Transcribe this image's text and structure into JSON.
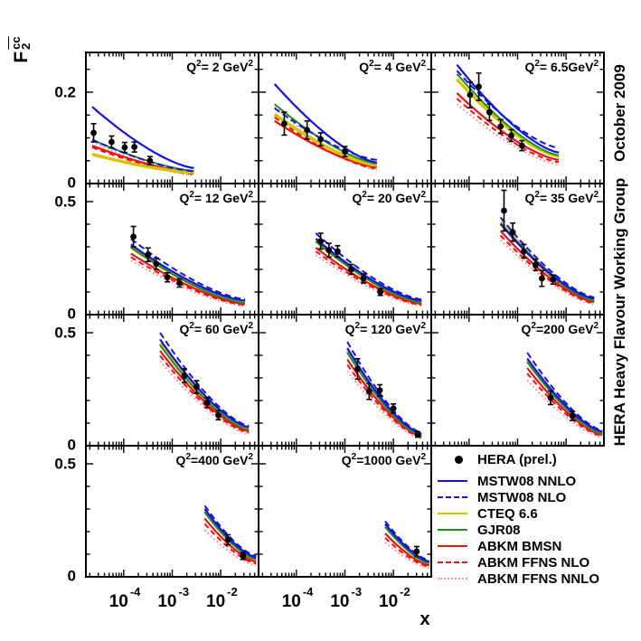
{
  "chart_data": {
    "type": "line",
    "x_scale": "log",
    "xlabel": "x",
    "x_range_log10": [
      -4.78,
      -1.22
    ],
    "x_major_ticks": [
      {
        "log10": -4,
        "base": "10",
        "exponent": "-4"
      },
      {
        "log10": -3,
        "base": "10",
        "exponent": "-3"
      },
      {
        "log10": -2,
        "base": "10",
        "exponent": "-2"
      }
    ],
    "y_axis_title": {
      "base": "F",
      "sup": "cc",
      "sub": "2"
    },
    "annotations": {
      "right_top": "October 2009",
      "right_side": "HERA Heavy Flavour Working Group"
    },
    "rows": [
      {
        "y_max": 0.287,
        "major": [
          {
            "value": 0.2,
            "label": "0.2"
          },
          {
            "value": 0,
            "label": "0"
          }
        ],
        "minor": [
          0.05,
          0.1,
          0.15,
          0.25
        ]
      },
      {
        "y_max": 0.58,
        "major": [
          {
            "value": 0.5,
            "label": "0.5"
          },
          {
            "value": 0,
            "label": "0"
          }
        ],
        "minor": [
          0.1,
          0.2,
          0.3,
          0.4
        ]
      },
      {
        "y_max": 0.58,
        "major": [
          {
            "value": 0.5,
            "label": "0.5"
          },
          {
            "value": 0,
            "label": "0"
          }
        ],
        "minor": [
          0.1,
          0.2,
          0.3,
          0.4
        ]
      },
      {
        "y_max": 0.58,
        "major": [
          {
            "value": 0.5,
            "label": "0.5"
          },
          {
            "value": 0,
            "label": "0"
          }
        ],
        "minor": [
          0.1,
          0.2,
          0.3,
          0.4
        ]
      }
    ],
    "series": [
      {
        "id": "nnlo",
        "name": "MSTW08 NNLO",
        "color": "#1212e8",
        "style": "solid",
        "dash": "",
        "width": 2.2
      },
      {
        "id": "nlo",
        "name": "MSTW08 NLO",
        "color": "#1212e8",
        "style": "dashed",
        "dash": "7,4",
        "width": 2
      },
      {
        "id": "cteq",
        "name": "CTEQ 6.6",
        "color": "#d4c500",
        "style": "solid",
        "dash": "",
        "width": 3.5
      },
      {
        "id": "gjr",
        "name": "GJR08",
        "color": "#1e8f1e",
        "style": "solid",
        "dash": "",
        "width": 2
      },
      {
        "id": "bmsn",
        "name": "ABKM BMSN",
        "color": "#ef1010",
        "style": "solid",
        "dash": "",
        "width": 2.2
      },
      {
        "id": "ffns_nlo",
        "name": "ABKM FFNS NLO",
        "color": "#ef1010",
        "style": "dashed",
        "dash": "6,4",
        "width": 2
      },
      {
        "id": "ffns_nnlo",
        "name": "ABKM FFNS NNLO",
        "color": "#ff9090",
        "style": "dotted",
        "dash": "1.8,2.8",
        "width": 2
      }
    ],
    "draw_order": [
      "ffns_nnlo",
      "ffns_nlo",
      "bmsn",
      "cteq",
      "gjr",
      "nnlo",
      "nlo"
    ],
    "data_series_name": "HERA (prel.)",
    "legend": [
      {
        "label": "HERA (prel.)",
        "swatch": "marker",
        "color": "#000000"
      },
      {
        "label": "MSTW08 NNLO",
        "swatch": "solid",
        "color": "#1212e8"
      },
      {
        "label": "MSTW08 NLO",
        "swatch": "dashed",
        "color": "#1212e8"
      },
      {
        "label": "CTEQ 6.6",
        "swatch": "solid",
        "color": "#d4c500"
      },
      {
        "label": "GJR08",
        "swatch": "solid",
        "color": "#1e8f1e"
      },
      {
        "label": "ABKM BMSN",
        "swatch": "solid",
        "color": "#ef1010"
      },
      {
        "label": "ABKM FFNS NLO",
        "swatch": "dashed",
        "color": "#ef1010"
      },
      {
        "label": "ABKM FFNS NNLO",
        "swatch": "dotted",
        "color": "#ff9090"
      }
    ],
    "panels": [
      {
        "label": "Q²= 2 GeV²",
        "q2_gev2": 2,
        "row": 0,
        "col": 0,
        "xr": [
          -4.65,
          -2.55
        ],
        "curves": {
          "nnlo": [
            0.168,
            0.034
          ],
          "nlo": [
            0.096,
            0.027
          ],
          "cteq": [
            0.064,
            0.024
          ],
          "gjr": [
            0.096,
            0.028
          ],
          "bmsn": [
            0.083,
            0.024
          ],
          "ffns_nlo": [
            0.079,
            0.021
          ],
          "ffns_nnlo": [
            0.092,
            0.018
          ]
        },
        "points": [
          [
            -4.62,
            0.111,
            0.02
          ],
          [
            -4.25,
            0.091,
            0.013
          ],
          [
            -3.98,
            0.079,
            0.011
          ],
          [
            -3.78,
            0.08,
            0.011
          ],
          [
            -3.46,
            0.05,
            0.009
          ]
        ]
      },
      {
        "label": "Q²= 4 GeV²",
        "q2_gev2": 4,
        "row": 0,
        "col": 1,
        "xr": [
          -4.45,
          -2.34
        ],
        "curves": {
          "nnlo": [
            0.218,
            0.046
          ],
          "nlo": [
            0.165,
            0.052
          ],
          "cteq": [
            0.152,
            0.04
          ],
          "gjr": [
            0.174,
            0.044
          ],
          "bmsn": [
            0.137,
            0.036
          ],
          "ffns_nlo": [
            0.145,
            0.033
          ],
          "ffns_nnlo": [
            0.168,
            0.03
          ]
        },
        "points": [
          [
            -4.25,
            0.131,
            0.025
          ],
          [
            -3.78,
            0.117,
            0.02
          ],
          [
            -3.5,
            0.097,
            0.014
          ],
          [
            -3.0,
            0.07,
            0.011
          ]
        ]
      },
      {
        "label": "Q²= 6.5GeV²",
        "q2_gev2": 6.5,
        "row": 0,
        "col": 2,
        "xr": [
          -4.25,
          -2.15
        ],
        "curves": {
          "nnlo": [
            0.26,
            0.068
          ],
          "nlo": [
            0.247,
            0.078
          ],
          "cteq": [
            0.228,
            0.06
          ],
          "gjr": [
            0.24,
            0.062
          ],
          "bmsn": [
            0.198,
            0.052
          ],
          "ffns_nlo": [
            0.186,
            0.047
          ],
          "ffns_nnlo": [
            0.174,
            0.042
          ]
        },
        "points": [
          [
            -3.98,
            0.194,
            0.028
          ],
          [
            -3.8,
            0.212,
            0.03
          ],
          [
            -3.58,
            0.156,
            0.018
          ],
          [
            -3.35,
            0.125,
            0.015
          ],
          [
            -3.13,
            0.105,
            0.013
          ],
          [
            -2.91,
            0.083,
            0.011
          ]
        ]
      },
      {
        "label": "Q²= 12 GeV²",
        "q2_gev2": 12,
        "row": 1,
        "col": 0,
        "xr": [
          -3.85,
          -1.5
        ],
        "curves": {
          "nnlo": [
            0.31,
            0.062
          ],
          "nlo": [
            0.335,
            0.068
          ],
          "cteq": [
            0.298,
            0.056
          ],
          "gjr": [
            0.298,
            0.052
          ],
          "bmsn": [
            0.27,
            0.047
          ],
          "ffns_nlo": [
            0.254,
            0.043
          ],
          "ffns_nnlo": [
            0.238,
            0.038
          ]
        },
        "points": [
          [
            -3.8,
            0.345,
            0.045
          ],
          [
            -3.5,
            0.265,
            0.03
          ],
          [
            -3.33,
            0.225,
            0.025
          ],
          [
            -3.1,
            0.165,
            0.02
          ],
          [
            -2.85,
            0.14,
            0.018
          ]
        ]
      },
      {
        "label": "Q²= 20 GeV²",
        "q2_gev2": 20,
        "row": 1,
        "col": 1,
        "xr": [
          -3.6,
          -1.42
        ],
        "curves": {
          "nnlo": [
            0.336,
            0.062
          ],
          "nlo": [
            0.36,
            0.068
          ],
          "cteq": [
            0.325,
            0.057
          ],
          "gjr": [
            0.325,
            0.054
          ],
          "bmsn": [
            0.296,
            0.048
          ],
          "ffns_nlo": [
            0.28,
            0.044
          ],
          "ffns_nnlo": [
            0.264,
            0.039
          ]
        },
        "points": [
          [
            -3.5,
            0.325,
            0.035
          ],
          [
            -3.33,
            0.285,
            0.03
          ],
          [
            -3.15,
            0.28,
            0.025
          ],
          [
            -2.87,
            0.2,
            0.022
          ],
          [
            -2.62,
            0.16,
            0.02
          ],
          [
            -2.27,
            0.1,
            0.015
          ]
        ]
      },
      {
        "label": "Q²= 35 GeV²",
        "q2_gev2": 35,
        "row": 1,
        "col": 2,
        "xr": [
          -3.35,
          -1.42
        ],
        "curves": {
          "nnlo": [
            0.402,
            0.071
          ],
          "nlo": [
            0.43,
            0.077
          ],
          "cteq": [
            0.41,
            0.066
          ],
          "gjr": [
            0.4,
            0.062
          ],
          "bmsn": [
            0.37,
            0.056
          ],
          "ffns_nlo": [
            0.35,
            0.051
          ],
          "ffns_nnlo": [
            0.33,
            0.046
          ]
        },
        "points": [
          [
            -3.28,
            0.46,
            0.09
          ],
          [
            -3.1,
            0.365,
            0.04
          ],
          [
            -2.87,
            0.28,
            0.03
          ],
          [
            -2.63,
            0.22,
            0.025
          ],
          [
            -2.5,
            0.16,
            0.035
          ],
          [
            -2.27,
            0.155,
            0.02
          ]
        ]
      },
      {
        "label": "Q²= 60 GeV²",
        "q2_gev2": 60,
        "row": 2,
        "col": 0,
        "xr": [
          -3.25,
          -1.42
        ],
        "curves": {
          "nnlo": [
            0.47,
            0.082
          ],
          "nlo": [
            0.5,
            0.088
          ],
          "cteq": [
            0.452,
            0.076
          ],
          "gjr": [
            0.445,
            0.071
          ],
          "bmsn": [
            0.42,
            0.064
          ],
          "ffns_nlo": [
            0.398,
            0.058
          ],
          "ffns_nnlo": [
            0.374,
            0.051
          ]
        },
        "points": [
          [
            -2.75,
            0.31,
            0.03
          ],
          [
            -2.5,
            0.26,
            0.028
          ],
          [
            -2.28,
            0.19,
            0.022
          ],
          [
            -2.05,
            0.135,
            0.02
          ]
        ]
      },
      {
        "label": "Q²= 120 GeV²",
        "q2_gev2": 120,
        "row": 2,
        "col": 1,
        "xr": [
          -2.95,
          -1.42
        ],
        "curves": {
          "nnlo": [
            0.432,
            0.053
          ],
          "nlo": [
            0.46,
            0.058
          ],
          "cteq": [
            0.42,
            0.049
          ],
          "gjr": [
            0.412,
            0.046
          ],
          "bmsn": [
            0.382,
            0.041
          ],
          "ffns_nlo": [
            0.358,
            0.037
          ],
          "ffns_nnlo": [
            0.33,
            0.032
          ]
        },
        "points": [
          [
            -2.74,
            0.34,
            0.045
          ],
          [
            -2.5,
            0.24,
            0.035
          ],
          [
            -2.28,
            0.245,
            0.025
          ],
          [
            -2.0,
            0.165,
            0.02
          ],
          [
            -1.5,
            0.05,
            0.012
          ]
        ]
      },
      {
        "label": "Q²=200 GeV²",
        "q2_gev2": 200,
        "row": 2,
        "col": 2,
        "xr": [
          -2.8,
          -1.25
        ],
        "curves": {
          "nnlo": [
            0.386,
            0.063
          ],
          "nlo": [
            0.412,
            0.068
          ],
          "cteq": [
            0.376,
            0.058
          ],
          "gjr": [
            0.37,
            0.055
          ],
          "bmsn": [
            0.344,
            0.048
          ],
          "ffns_nlo": [
            0.32,
            0.043
          ],
          "ffns_nnlo": [
            0.29,
            0.037
          ]
        },
        "points": [
          [
            -2.32,
            0.212,
            0.03
          ],
          [
            -1.87,
            0.132,
            0.02
          ]
        ]
      },
      {
        "label": "Q²=400 GeV²",
        "q2_gev2": 400,
        "row": 3,
        "col": 0,
        "xr": [
          -2.33,
          -1.27
        ],
        "curves": {
          "nnlo": [
            0.3,
            0.086
          ],
          "nlo": [
            0.315,
            0.092
          ],
          "cteq": [
            0.29,
            0.081
          ],
          "gjr": [
            0.285,
            0.077
          ],
          "bmsn": [
            0.258,
            0.067
          ],
          "ffns_nlo": [
            0.234,
            0.059
          ],
          "ffns_nnlo": [
            0.208,
            0.05
          ]
        },
        "points": [
          [
            -1.85,
            0.164,
            0.022
          ],
          [
            -1.54,
            0.092,
            0.015
          ]
        ]
      },
      {
        "label": "Q²=1000 GeV²",
        "q2_gev2": 1000,
        "row": 3,
        "col": 1,
        "xr": [
          -2.17,
          -1.26
        ],
        "curves": {
          "nnlo": [
            0.234,
            0.068
          ],
          "nlo": [
            0.246,
            0.073
          ],
          "cteq": [
            0.226,
            0.063
          ],
          "gjr": [
            0.22,
            0.06
          ],
          "bmsn": [
            0.192,
            0.051
          ],
          "ffns_nlo": [
            0.172,
            0.045
          ],
          "ffns_nnlo": [
            0.152,
            0.039
          ]
        },
        "points": [
          [
            -1.52,
            0.112,
            0.022
          ]
        ]
      }
    ]
  }
}
